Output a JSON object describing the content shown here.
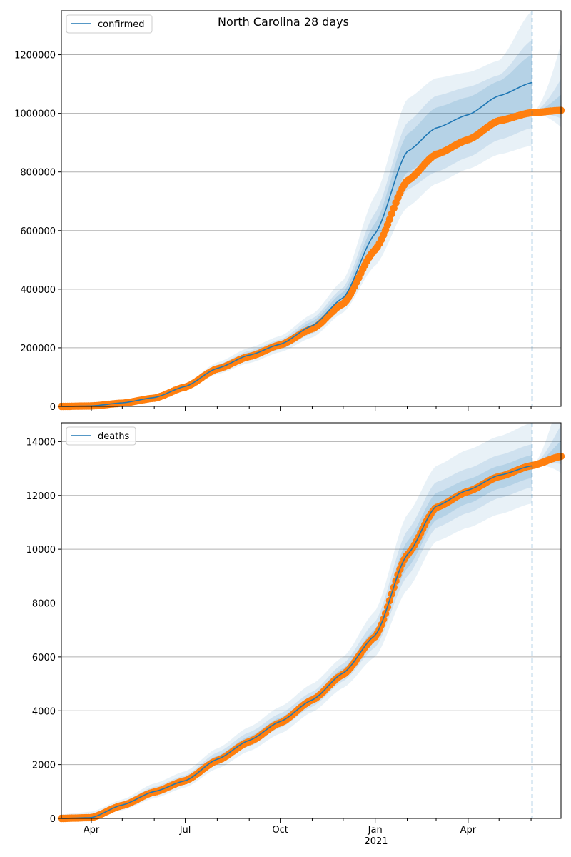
{
  "figure": {
    "title": "North Carolina 28 days"
  },
  "x_axis": {
    "ticks": [
      {
        "label": "Apr",
        "date": "2020-04-01"
      },
      {
        "label": "Jul",
        "date": "2020-07-01"
      },
      {
        "label": "Oct",
        "date": "2020-10-01"
      },
      {
        "label": "Jan",
        "date": "2021-01-01"
      },
      {
        "label": "Apr",
        "date": "2021-04-01"
      }
    ],
    "year_label": "2021",
    "range": [
      "2020-03-03",
      "2021-06-30"
    ],
    "forecast_start": "2021-06-02"
  },
  "colors": {
    "model": "#1f77b4",
    "observed": "#ff7f0e",
    "band": "#1f77b4",
    "grid": "#b0b0b0"
  },
  "chart_data": [
    {
      "type": "line",
      "panel": "top",
      "legend": {
        "label": "confirmed",
        "position": "upper-left"
      },
      "ylim": [
        0,
        1350000
      ],
      "yticks": [
        0,
        200000,
        400000,
        600000,
        800000,
        1000000,
        1200000
      ],
      "ytick_labels": [
        "0",
        "200000",
        "400000",
        "600000",
        "800000",
        "1000000",
        "1200000"
      ],
      "grid": "y",
      "series": [
        {
          "name": "confirmed",
          "role": "model",
          "points": [
            [
              "2020-03-03",
              0
            ],
            [
              "2020-04-01",
              1500
            ],
            [
              "2020-05-01",
              12000
            ],
            [
              "2020-06-01",
              30000
            ],
            [
              "2020-07-01",
              68000
            ],
            [
              "2020-08-01",
              130000
            ],
            [
              "2020-09-01",
              175000
            ],
            [
              "2020-10-01",
              212000
            ],
            [
              "2020-11-01",
              275000
            ],
            [
              "2020-12-01",
              370000
            ],
            [
              "2021-01-01",
              590000
            ],
            [
              "2021-02-01",
              870000
            ],
            [
              "2021-03-01",
              950000
            ],
            [
              "2021-04-01",
              995000
            ],
            [
              "2021-05-01",
              1060000
            ],
            [
              "2021-06-02",
              1105000
            ]
          ]
        },
        {
          "role": "observed",
          "points": [
            [
              "2020-03-03",
              0
            ],
            [
              "2020-04-01",
              1500
            ],
            [
              "2020-05-01",
              11000
            ],
            [
              "2020-06-01",
              28000
            ],
            [
              "2020-07-01",
              66000
            ],
            [
              "2020-08-01",
              128000
            ],
            [
              "2020-09-01",
              170000
            ],
            [
              "2020-10-01",
              210000
            ],
            [
              "2020-11-01",
              265000
            ],
            [
              "2020-12-01",
              350000
            ],
            [
              "2021-01-01",
              535000
            ],
            [
              "2021-02-01",
              770000
            ],
            [
              "2021-03-01",
              860000
            ],
            [
              "2021-04-01",
              910000
            ],
            [
              "2021-05-01",
              975000
            ],
            [
              "2021-06-01",
              1002000
            ],
            [
              "2021-06-30",
              1010000
            ]
          ]
        }
      ],
      "bands": [
        {
          "lower": [
            [
              0,
              0
            ],
            [
              1500,
              1500
            ],
            [
              10000,
              14000
            ],
            [
              25000,
              35000
            ],
            [
              58000,
              78000
            ],
            [
              110000,
              150000
            ],
            [
              148000,
              200000
            ],
            [
              185000,
              240000
            ],
            [
              235000,
              315000
            ],
            [
              320000,
              430000
            ],
            [
              480000,
              720000
            ],
            [
              680000,
              1050000
            ],
            [
              760000,
              1120000
            ],
            [
              810000,
              1140000
            ],
            [
              860000,
              1180000
            ],
            [
              890000,
              1350000
            ]
          ]
        },
        {
          "lower": [
            [
              0,
              0
            ],
            [
              1500,
              1500
            ],
            [
              10800,
              13200
            ],
            [
              27000,
              33000
            ],
            [
              62000,
              74000
            ],
            [
              118000,
              142000
            ],
            [
              158000,
              190000
            ],
            [
              195000,
              228000
            ],
            [
              248000,
              300000
            ],
            [
              338000,
              405000
            ],
            [
              520000,
              660000
            ],
            [
              740000,
              970000
            ],
            [
              800000,
              1060000
            ],
            [
              850000,
              1090000
            ],
            [
              910000,
              1130000
            ],
            [
              950000,
              1250000
            ]
          ]
        },
        {
          "lower": [
            [
              0,
              0
            ],
            [
              1500,
              1500
            ],
            [
              11400,
              12600
            ],
            [
              28500,
              31500
            ],
            [
              65000,
              71000
            ],
            [
              124000,
              136000
            ],
            [
              166000,
              184000
            ],
            [
              203000,
              220000
            ],
            [
              260000,
              290000
            ],
            [
              352000,
              390000
            ],
            [
              555000,
              625000
            ],
            [
              800000,
              930000
            ],
            [
              860000,
              1020000
            ],
            [
              905000,
              1055000
            ],
            [
              965000,
              1110000
            ],
            [
              1000000,
              1200000
            ]
          ]
        }
      ]
    },
    {
      "type": "line",
      "panel": "bottom",
      "legend": {
        "label": "deaths",
        "position": "upper-left"
      },
      "ylim": [
        0,
        14700
      ],
      "yticks": [
        0,
        2000,
        4000,
        6000,
        8000,
        10000,
        12000,
        14000
      ],
      "ytick_labels": [
        "0",
        "2000",
        "4000",
        "6000",
        "8000",
        "10000",
        "12000",
        "14000"
      ],
      "grid": "y",
      "series": [
        {
          "name": "deaths",
          "role": "model",
          "points": [
            [
              "2020-03-03",
              0
            ],
            [
              "2020-04-01",
              30
            ],
            [
              "2020-05-01",
              500
            ],
            [
              "2020-06-01",
              1000
            ],
            [
              "2020-07-01",
              1400
            ],
            [
              "2020-08-01",
              2200
            ],
            [
              "2020-09-01",
              2900
            ],
            [
              "2020-10-01",
              3600
            ],
            [
              "2020-11-01",
              4400
            ],
            [
              "2020-12-01",
              5400
            ],
            [
              "2021-01-01",
              6800
            ],
            [
              "2021-02-01",
              9800
            ],
            [
              "2021-03-01",
              11600
            ],
            [
              "2021-04-01",
              12200
            ],
            [
              "2021-05-01",
              12750
            ],
            [
              "2021-06-02",
              13100
            ]
          ]
        },
        {
          "role": "observed",
          "points": [
            [
              "2020-03-03",
              0
            ],
            [
              "2020-04-01",
              30
            ],
            [
              "2020-05-01",
              480
            ],
            [
              "2020-06-01",
              980
            ],
            [
              "2020-07-01",
              1400
            ],
            [
              "2020-08-01",
              2150
            ],
            [
              "2020-09-01",
              2850
            ],
            [
              "2020-10-01",
              3550
            ],
            [
              "2020-11-01",
              4400
            ],
            [
              "2020-12-01",
              5350
            ],
            [
              "2021-01-01",
              6750
            ],
            [
              "2021-02-01",
              9800
            ],
            [
              "2021-03-01",
              11550
            ],
            [
              "2021-04-01",
              12150
            ],
            [
              "2021-05-01",
              12700
            ],
            [
              "2021-06-01",
              13100
            ],
            [
              "2021-06-30",
              13450
            ]
          ]
        }
      ],
      "bands": [
        {
          "lower": [
            [
              0,
              150
            ],
            [
              0,
              250
            ],
            [
              300,
              700
            ],
            [
              750,
              1300
            ],
            [
              1150,
              1750
            ],
            [
              1850,
              2600
            ],
            [
              2500,
              3400
            ],
            [
              3150,
              4150
            ],
            [
              3950,
              5000
            ],
            [
              4850,
              6000
            ],
            [
              6000,
              7700
            ],
            [
              8500,
              11300
            ],
            [
              10300,
              13100
            ],
            [
              10800,
              13700
            ],
            [
              11300,
              14200
            ],
            [
              11700,
              14700
            ]
          ]
        },
        {
          "lower": [
            [
              0,
              80
            ],
            [
              10,
              120
            ],
            [
              370,
              620
            ],
            [
              860,
              1180
            ],
            [
              1260,
              1600
            ],
            [
              2000,
              2450
            ],
            [
              2680,
              3200
            ],
            [
              3370,
              3900
            ],
            [
              4150,
              4700
            ],
            [
              5100,
              5750
            ],
            [
              6350,
              7300
            ],
            [
              9000,
              10700
            ],
            [
              10800,
              12500
            ],
            [
              11350,
              13000
            ],
            [
              11900,
              13500
            ],
            [
              12300,
              13900
            ]
          ]
        },
        {
          "lower": [
            [
              0,
              30
            ],
            [
              20,
              60
            ],
            [
              430,
              560
            ],
            [
              920,
              1080
            ],
            [
              1320,
              1500
            ],
            [
              2080,
              2330
            ],
            [
              2790,
              3050
            ],
            [
              3480,
              3750
            ],
            [
              4280,
              4560
            ],
            [
              5230,
              5580
            ],
            [
              6560,
              7030
            ],
            [
              9300,
              10300
            ],
            [
              11100,
              12100
            ],
            [
              11700,
              12600
            ],
            [
              12250,
              13100
            ],
            [
              12650,
              13500
            ]
          ]
        }
      ]
    }
  ]
}
